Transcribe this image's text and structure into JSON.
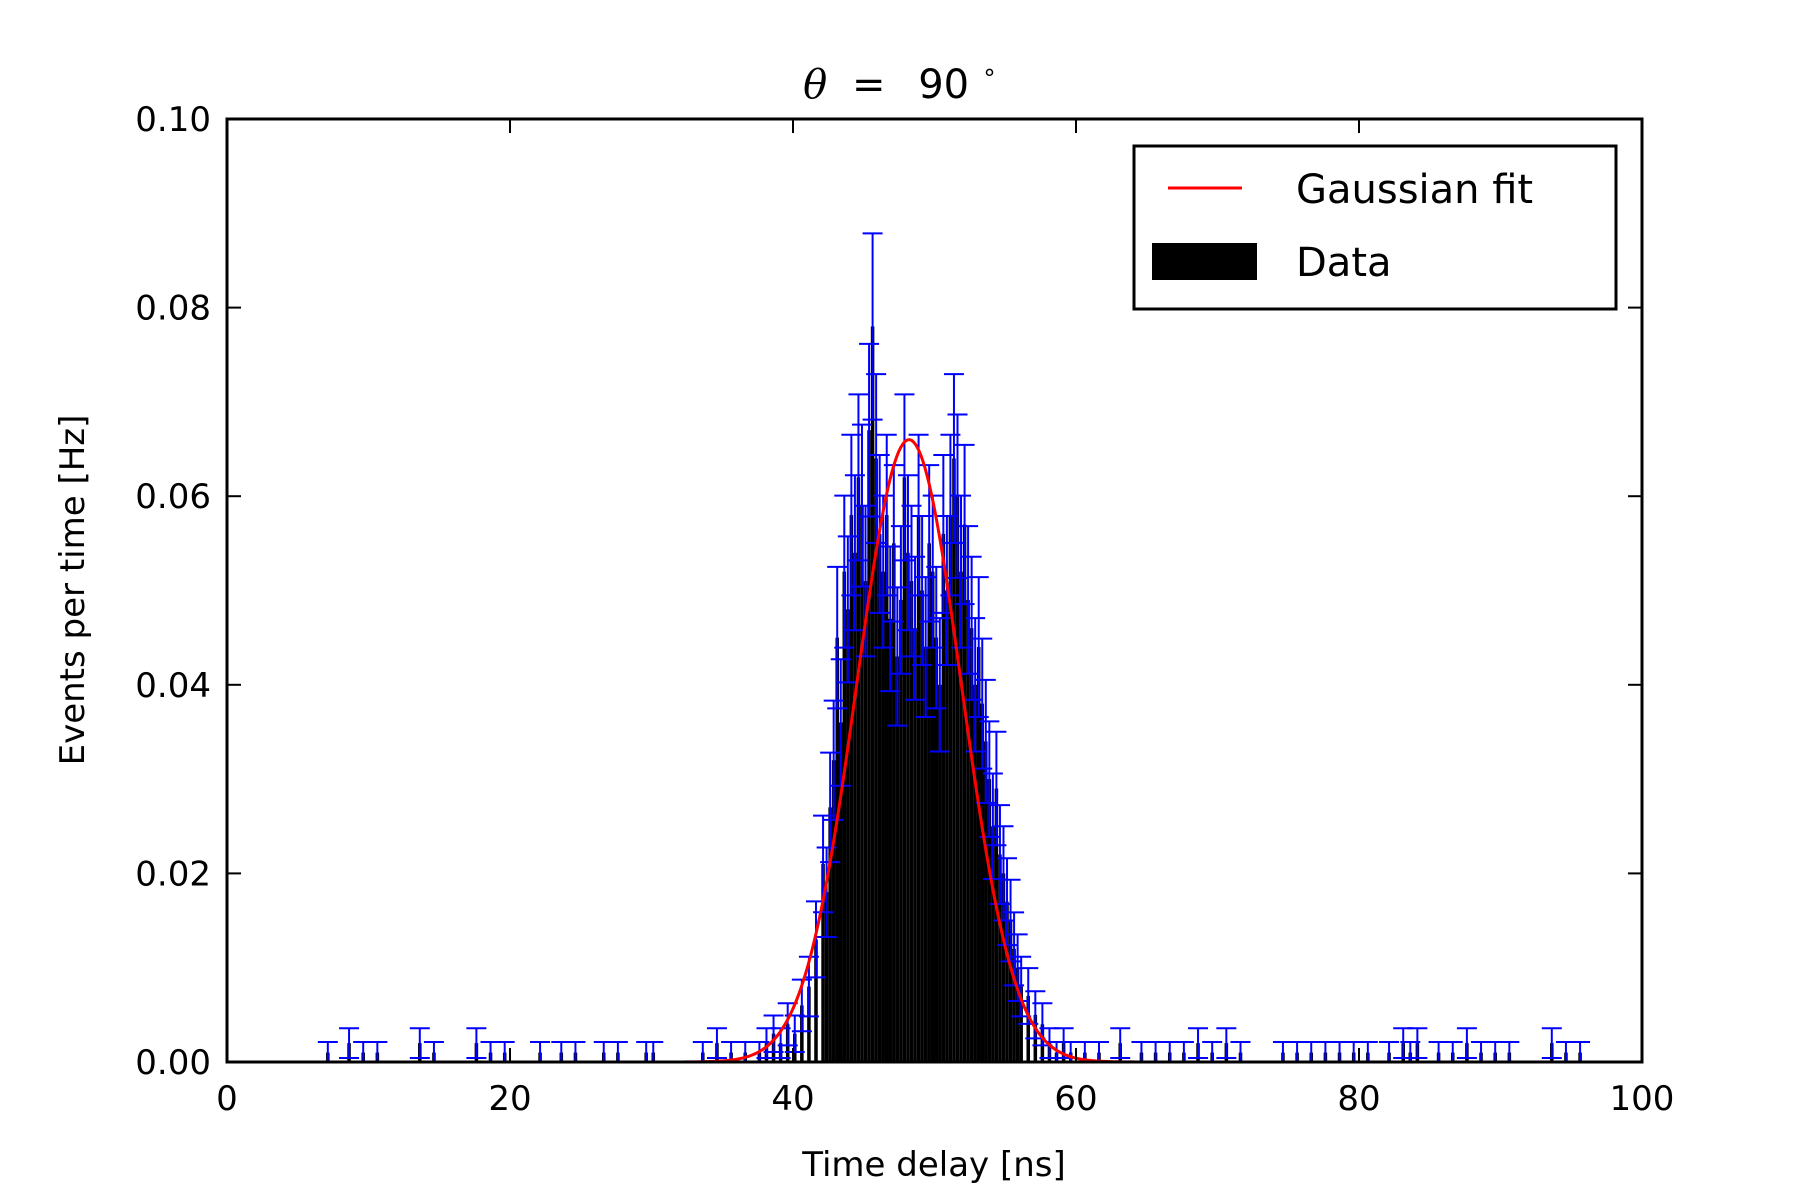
{
  "chart_data": {
    "type": "bar",
    "title": {
      "symbol": "θ",
      "equals": "=",
      "value": "90",
      "degree": "∘"
    },
    "xlabel": "Time delay [ns]",
    "ylabel": "Events per time [Hz]",
    "xlim": [
      0,
      100
    ],
    "ylim": [
      0,
      0.1
    ],
    "xticks": [
      0,
      20,
      40,
      60,
      80,
      100
    ],
    "xtick_labels": [
      "0",
      "20",
      "40",
      "60",
      "80",
      "100"
    ],
    "yticks": [
      0,
      0.02,
      0.04,
      0.06,
      0.08,
      0.1
    ],
    "ytick_labels": [
      "0.00",
      "0.02",
      "0.04",
      "0.06",
      "0.08",
      "0.10"
    ],
    "grid": false,
    "legend_position": "top-right",
    "legend": [
      {
        "label": "Gaussian fit",
        "kind": "line",
        "color": "#ff0000"
      },
      {
        "label": "Data",
        "kind": "patch",
        "color": "#000000"
      }
    ],
    "histogram": {
      "bin_width": 0.25,
      "bar_color": "#000000",
      "error_color": "#0000ff",
      "nonzero_bins": [
        [
          7.0,
          0.001
        ],
        [
          8.5,
          0.002
        ],
        [
          9.5,
          0.001
        ],
        [
          10.5,
          0.001
        ],
        [
          13.5,
          0.002
        ],
        [
          14.5,
          0.001
        ],
        [
          17.5,
          0.002
        ],
        [
          18.5,
          0.001
        ],
        [
          19.5,
          0.001
        ],
        [
          22.0,
          0.001
        ],
        [
          23.5,
          0.001
        ],
        [
          24.5,
          0.001
        ],
        [
          26.5,
          0.001
        ],
        [
          27.5,
          0.001
        ],
        [
          29.5,
          0.001
        ],
        [
          30.0,
          0.001
        ],
        [
          33.5,
          0.001
        ],
        [
          34.5,
          0.002
        ],
        [
          35.5,
          0.001
        ],
        [
          36.5,
          0.001
        ],
        [
          37.5,
          0.001
        ],
        [
          38.0,
          0.002
        ],
        [
          38.5,
          0.003
        ],
        [
          39.0,
          0.002
        ],
        [
          39.5,
          0.004
        ],
        [
          40.0,
          0.003
        ],
        [
          40.5,
          0.006
        ],
        [
          41.0,
          0.008
        ],
        [
          41.5,
          0.013
        ],
        [
          42.0,
          0.021
        ],
        [
          42.25,
          0.018
        ],
        [
          42.5,
          0.027
        ],
        [
          42.75,
          0.032
        ],
        [
          43.0,
          0.045
        ],
        [
          43.25,
          0.036
        ],
        [
          43.5,
          0.052
        ],
        [
          43.75,
          0.048
        ],
        [
          44.0,
          0.058
        ],
        [
          44.25,
          0.054
        ],
        [
          44.5,
          0.062
        ],
        [
          44.75,
          0.059
        ],
        [
          45.0,
          0.051
        ],
        [
          45.25,
          0.067
        ],
        [
          45.5,
          0.078
        ],
        [
          45.75,
          0.064
        ],
        [
          46.0,
          0.056
        ],
        [
          46.25,
          0.052
        ],
        [
          46.5,
          0.058
        ],
        [
          46.75,
          0.047
        ],
        [
          47.0,
          0.055
        ],
        [
          47.25,
          0.043
        ],
        [
          47.5,
          0.049
        ],
        [
          47.75,
          0.062
        ],
        [
          48.0,
          0.054
        ],
        [
          48.25,
          0.051
        ],
        [
          48.5,
          0.046
        ],
        [
          48.75,
          0.058
        ],
        [
          49.0,
          0.05
        ],
        [
          49.25,
          0.044
        ],
        [
          49.5,
          0.055
        ],
        [
          49.75,
          0.052
        ],
        [
          50.0,
          0.045
        ],
        [
          50.25,
          0.04
        ],
        [
          50.5,
          0.056
        ],
        [
          50.75,
          0.05
        ],
        [
          51.0,
          0.058
        ],
        [
          51.25,
          0.064
        ],
        [
          51.5,
          0.06
        ],
        [
          51.75,
          0.052
        ],
        [
          52.0,
          0.057
        ],
        [
          52.25,
          0.049
        ],
        [
          52.5,
          0.046
        ],
        [
          52.75,
          0.04
        ],
        [
          53.0,
          0.044
        ],
        [
          53.25,
          0.038
        ],
        [
          53.5,
          0.034
        ],
        [
          53.75,
          0.03
        ],
        [
          54.0,
          0.025
        ],
        [
          54.25,
          0.029
        ],
        [
          54.5,
          0.022
        ],
        [
          54.75,
          0.02
        ],
        [
          55.0,
          0.017
        ],
        [
          55.25,
          0.015
        ],
        [
          55.5,
          0.012
        ],
        [
          55.75,
          0.01
        ],
        [
          56.0,
          0.008
        ],
        [
          56.5,
          0.007
        ],
        [
          57.0,
          0.005
        ],
        [
          57.5,
          0.004
        ],
        [
          58.0,
          0.002
        ],
        [
          58.5,
          0.001
        ],
        [
          59.0,
          0.002
        ],
        [
          59.5,
          0.001
        ],
        [
          60.5,
          0.001
        ],
        [
          61.5,
          0.001
        ],
        [
          63.0,
          0.002
        ],
        [
          64.5,
          0.001
        ],
        [
          65.5,
          0.001
        ],
        [
          66.5,
          0.001
        ],
        [
          67.5,
          0.001
        ],
        [
          68.5,
          0.002
        ],
        [
          69.5,
          0.001
        ],
        [
          70.5,
          0.002
        ],
        [
          71.5,
          0.001
        ],
        [
          74.5,
          0.001
        ],
        [
          75.5,
          0.001
        ],
        [
          76.5,
          0.001
        ],
        [
          77.5,
          0.001
        ],
        [
          78.5,
          0.001
        ],
        [
          79.5,
          0.001
        ],
        [
          80.5,
          0.001
        ],
        [
          82.0,
          0.001
        ],
        [
          83.0,
          0.002
        ],
        [
          83.5,
          0.001
        ],
        [
          84.0,
          0.002
        ],
        [
          85.5,
          0.001
        ],
        [
          86.5,
          0.001
        ],
        [
          87.5,
          0.002
        ],
        [
          88.5,
          0.001
        ],
        [
          89.5,
          0.001
        ],
        [
          90.5,
          0.001
        ],
        [
          93.5,
          0.002
        ],
        [
          94.5,
          0.001
        ],
        [
          95.5,
          0.001
        ]
      ]
    },
    "gaussian_fit": {
      "amplitude": 0.066,
      "mean": 48.2,
      "sigma": 3.7,
      "x_range": [
        5,
        97
      ],
      "color": "#ff0000"
    }
  }
}
